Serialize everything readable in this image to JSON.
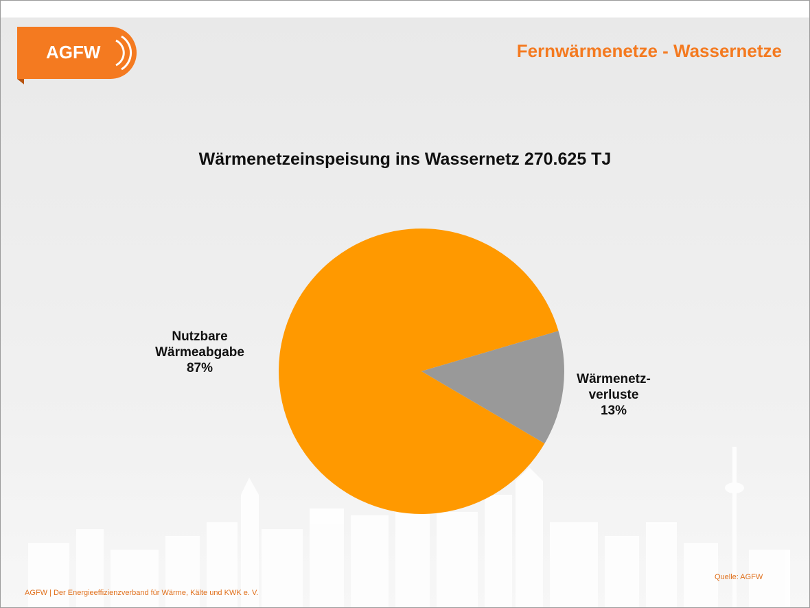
{
  "header": "Fernwärmenetze - Wassernetze",
  "logo": "AGFW",
  "footer": "AGFW | Der Energieeffizienzverband für Wärme, Kälte und KWK e. V.",
  "source": "Quelle: AGFW",
  "chart_data": {
    "type": "pie",
    "title": "Wärmenetzeinspeisung ins Wassernetz 270.625 TJ",
    "categories": [
      "Nutzbare\nWärmeabgabe",
      "Wärmenetz-\nverluste"
    ],
    "values": [
      87,
      13
    ],
    "value_labels": [
      "87%",
      "13%"
    ],
    "colors": [
      "#ff9900",
      "#999999"
    ]
  }
}
